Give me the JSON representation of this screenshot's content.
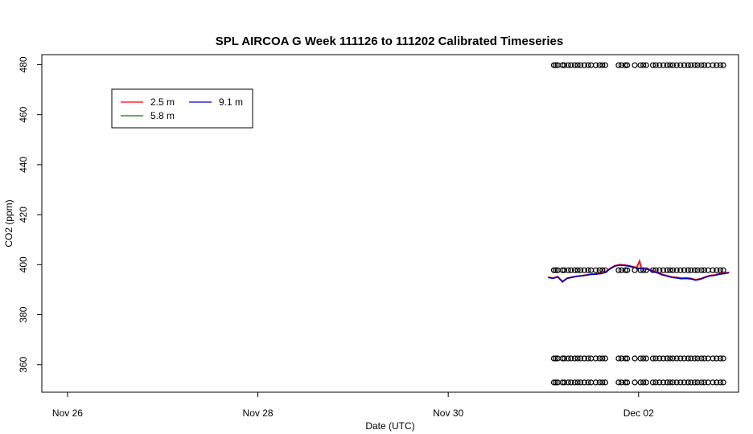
{
  "chart_data": {
    "type": "line",
    "title": "SPL AIRCOA G  Week 111126 to 111202  Calibrated Timeseries",
    "xlabel": "Date (UTC)",
    "ylabel": "CO2 (ppm)",
    "x_ticks": [
      {
        "label": "Nov 26",
        "day": 0
      },
      {
        "label": "Nov 28",
        "day": 2
      },
      {
        "label": "Nov 30",
        "day": 4
      },
      {
        "label": "Dec 02",
        "day": 6
      }
    ],
    "y_ticks": [
      360,
      380,
      400,
      420,
      440,
      460,
      480
    ],
    "xlim": [
      -0.27,
      7.05
    ],
    "ylim": [
      349,
      484
    ],
    "grid": false,
    "legend_position": "top-left",
    "series": [
      {
        "name": "2.5 m",
        "color": "#ff0000",
        "points": [
          [
            5.05,
            395.0
          ],
          [
            5.1,
            394.6
          ],
          [
            5.15,
            395.3
          ],
          [
            5.2,
            393.2
          ],
          [
            5.25,
            394.6
          ],
          [
            5.3,
            395.0
          ],
          [
            5.35,
            395.4
          ],
          [
            5.4,
            395.6
          ],
          [
            5.45,
            395.9
          ],
          [
            5.5,
            396.2
          ],
          [
            5.55,
            396.3
          ],
          [
            5.6,
            396.5
          ],
          [
            5.65,
            397.0
          ],
          [
            5.7,
            398.5
          ],
          [
            5.75,
            399.6
          ],
          [
            5.8,
            400.0
          ],
          [
            5.85,
            399.9
          ],
          [
            5.9,
            399.6
          ],
          [
            5.95,
            399.1
          ],
          [
            5.98,
            398.9
          ],
          [
            6.01,
            401.5
          ],
          [
            6.03,
            398.6
          ],
          [
            6.05,
            398.7
          ],
          [
            6.1,
            398.3
          ],
          [
            6.15,
            397.6
          ],
          [
            6.2,
            396.9
          ],
          [
            6.25,
            396.1
          ],
          [
            6.3,
            395.6
          ],
          [
            6.35,
            395.1
          ],
          [
            6.4,
            394.9
          ],
          [
            6.45,
            394.6
          ],
          [
            6.5,
            394.7
          ],
          [
            6.55,
            394.5
          ],
          [
            6.6,
            394.0
          ],
          [
            6.65,
            394.4
          ],
          [
            6.7,
            395.1
          ],
          [
            6.75,
            395.7
          ],
          [
            6.8,
            395.9
          ],
          [
            6.85,
            396.4
          ],
          [
            6.9,
            396.6
          ],
          [
            6.95,
            397.0
          ]
        ]
      },
      {
        "name": "5.8 m",
        "color": "#008000",
        "points": [
          [
            5.05,
            395.0
          ],
          [
            5.1,
            394.6
          ],
          [
            5.15,
            395.2
          ],
          [
            5.2,
            393.3
          ],
          [
            5.25,
            394.6
          ],
          [
            5.3,
            395.0
          ],
          [
            5.35,
            395.4
          ],
          [
            5.4,
            395.6
          ],
          [
            5.45,
            395.9
          ],
          [
            5.5,
            396.2
          ],
          [
            5.55,
            396.3
          ],
          [
            5.6,
            396.5
          ],
          [
            5.65,
            397.0
          ],
          [
            5.7,
            398.4
          ],
          [
            5.75,
            399.5
          ],
          [
            5.8,
            399.9
          ],
          [
            5.85,
            399.8
          ],
          [
            5.9,
            399.5
          ],
          [
            5.95,
            399.0
          ],
          [
            6.0,
            398.6
          ],
          [
            6.05,
            398.6
          ],
          [
            6.1,
            398.2
          ],
          [
            6.15,
            397.5
          ],
          [
            6.2,
            396.8
          ],
          [
            6.25,
            396.0
          ],
          [
            6.3,
            395.5
          ],
          [
            6.35,
            395.0
          ],
          [
            6.4,
            394.8
          ],
          [
            6.45,
            394.5
          ],
          [
            6.5,
            394.6
          ],
          [
            6.55,
            394.4
          ],
          [
            6.6,
            393.9
          ],
          [
            6.65,
            394.3
          ],
          [
            6.7,
            395.0
          ],
          [
            6.75,
            395.6
          ],
          [
            6.8,
            395.8
          ],
          [
            6.85,
            396.3
          ],
          [
            6.9,
            396.5
          ],
          [
            6.95,
            396.9
          ]
        ]
      },
      {
        "name": "9.1 m",
        "color": "#0000cc",
        "points": [
          [
            5.05,
            394.9
          ],
          [
            5.1,
            394.5
          ],
          [
            5.15,
            395.1
          ],
          [
            5.2,
            393.1
          ],
          [
            5.25,
            394.5
          ],
          [
            5.3,
            394.9
          ],
          [
            5.35,
            395.3
          ],
          [
            5.4,
            395.5
          ],
          [
            5.45,
            395.8
          ],
          [
            5.5,
            396.1
          ],
          [
            5.55,
            396.2
          ],
          [
            5.6,
            396.4
          ],
          [
            5.65,
            396.9
          ],
          [
            5.7,
            398.3
          ],
          [
            5.75,
            399.4
          ],
          [
            5.8,
            399.8
          ],
          [
            5.85,
            399.7
          ],
          [
            5.9,
            399.4
          ],
          [
            5.95,
            398.9
          ],
          [
            6.0,
            398.5
          ],
          [
            6.05,
            398.5
          ],
          [
            6.1,
            398.1
          ],
          [
            6.15,
            397.4
          ],
          [
            6.2,
            396.7
          ],
          [
            6.25,
            395.9
          ],
          [
            6.3,
            395.4
          ],
          [
            6.35,
            394.9
          ],
          [
            6.4,
            394.7
          ],
          [
            6.45,
            394.4
          ],
          [
            6.5,
            394.5
          ],
          [
            6.55,
            394.3
          ],
          [
            6.6,
            393.8
          ],
          [
            6.65,
            394.2
          ],
          [
            6.7,
            394.9
          ],
          [
            6.75,
            395.5
          ],
          [
            6.8,
            395.7
          ],
          [
            6.85,
            396.2
          ],
          [
            6.9,
            396.4
          ],
          [
            6.95,
            396.8
          ]
        ]
      }
    ],
    "calibration_levels": [
      {
        "ppm": 479.8,
        "x": [
          5.11,
          5.13,
          5.15,
          5.2,
          5.22,
          5.26,
          5.29,
          5.33,
          5.36,
          5.39,
          5.43,
          5.47,
          5.5,
          5.55,
          5.59,
          5.62,
          5.65,
          5.79,
          5.82,
          5.86,
          5.88,
          5.96,
          6.02,
          6.05,
          6.08,
          6.15,
          6.18,
          6.22,
          6.26,
          6.3,
          6.33,
          6.36,
          6.4,
          6.44,
          6.48,
          6.52,
          6.55,
          6.59,
          6.62,
          6.66,
          6.69,
          6.73,
          6.78,
          6.82,
          6.86,
          6.89
        ]
      },
      {
        "ppm": 397.8,
        "x": [
          5.11,
          5.13,
          5.15,
          5.2,
          5.22,
          5.26,
          5.29,
          5.33,
          5.36,
          5.39,
          5.43,
          5.47,
          5.5,
          5.55,
          5.59,
          5.62,
          5.65,
          5.79,
          5.82,
          5.86,
          5.88,
          5.96,
          6.02,
          6.05,
          6.08,
          6.15,
          6.18,
          6.22,
          6.26,
          6.3,
          6.33,
          6.36,
          6.4,
          6.44,
          6.48,
          6.52,
          6.55,
          6.59,
          6.62,
          6.66,
          6.69,
          6.73,
          6.78,
          6.82,
          6.86,
          6.89
        ]
      },
      {
        "ppm": 362.5,
        "x": [
          5.11,
          5.13,
          5.15,
          5.2,
          5.22,
          5.26,
          5.29,
          5.33,
          5.36,
          5.39,
          5.43,
          5.47,
          5.5,
          5.55,
          5.59,
          5.62,
          5.65,
          5.79,
          5.82,
          5.86,
          5.88,
          5.96,
          6.02,
          6.05,
          6.08,
          6.15,
          6.18,
          6.22,
          6.26,
          6.3,
          6.33,
          6.36,
          6.4,
          6.44,
          6.48,
          6.52,
          6.55,
          6.59,
          6.62,
          6.66,
          6.69,
          6.73,
          6.78,
          6.82,
          6.86,
          6.89
        ]
      },
      {
        "ppm": 352.9,
        "x": [
          5.11,
          5.13,
          5.15,
          5.2,
          5.22,
          5.26,
          5.29,
          5.33,
          5.36,
          5.39,
          5.43,
          5.47,
          5.5,
          5.55,
          5.59,
          5.62,
          5.65,
          5.79,
          5.82,
          5.86,
          5.88,
          5.96,
          6.02,
          6.05,
          6.08,
          6.15,
          6.18,
          6.22,
          6.26,
          6.3,
          6.33,
          6.36,
          6.4,
          6.44,
          6.48,
          6.52,
          6.55,
          6.59,
          6.62,
          6.66,
          6.69,
          6.73,
          6.78,
          6.82,
          6.86,
          6.89
        ]
      }
    ]
  }
}
